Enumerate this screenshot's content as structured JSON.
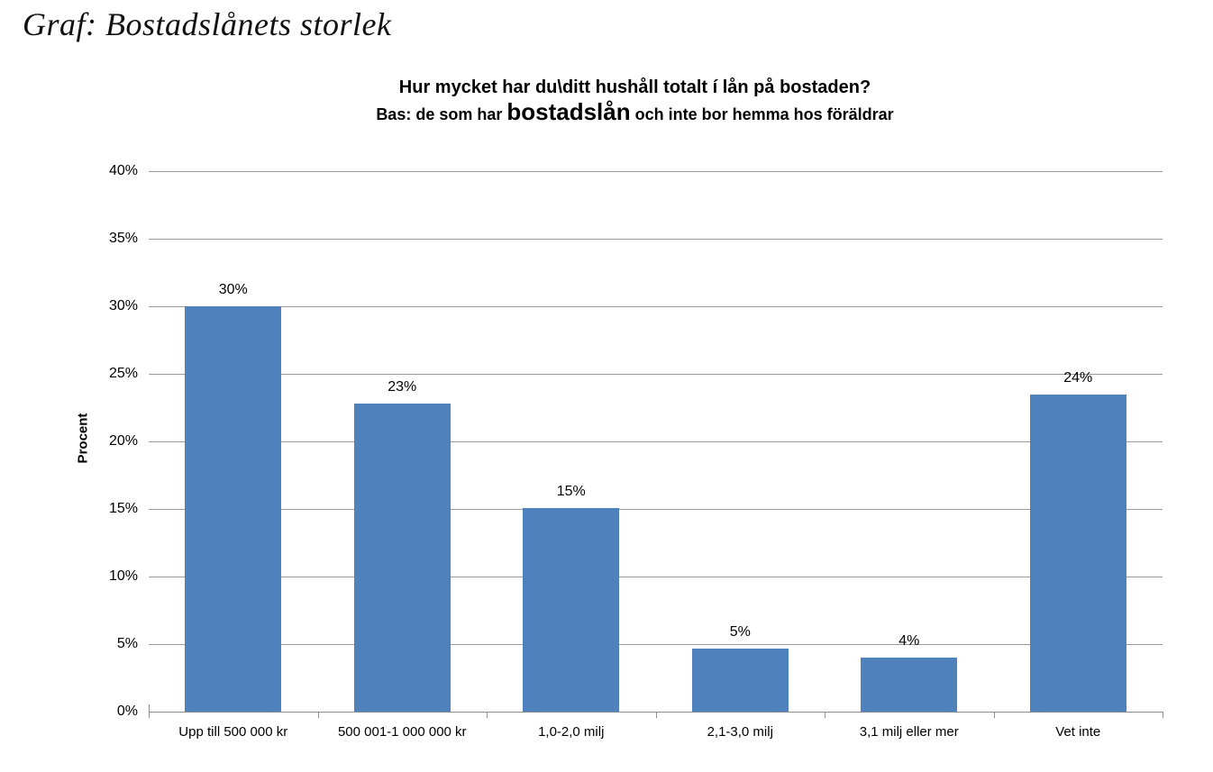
{
  "page_title": "Graf: Bostadslånets storlek",
  "chart_data": {
    "type": "bar",
    "title_line1": "Hur mycket har du\\ditt hushåll totalt í lån på bostaden?",
    "title_line2_prefix": "Bas: de som har ",
    "title_line2_emphasis": "bostadslån",
    "title_line2_suffix": " och inte bor hemma hos föräldrar",
    "ylabel": "Procent",
    "categories": [
      "Upp till 500 000 kr",
      "500 001-1 000 000 kr",
      "1,0-2,0 milj",
      "2,1-3,0 milj",
      "3,1 milj eller mer",
      "Vet inte"
    ],
    "values": [
      30,
      23,
      15,
      5,
      4,
      24
    ],
    "value_labels": [
      "30%",
      "23%",
      "15%",
      "5%",
      "4%",
      "24%"
    ],
    "bar_heights_pct": [
      30.0,
      22.8,
      15.1,
      4.7,
      4.0,
      23.5
    ],
    "y_ticks": [
      "40%",
      "35%",
      "30%",
      "25%",
      "20%",
      "15%",
      "10%",
      "5%",
      "0%"
    ],
    "ylim": [
      0,
      40
    ],
    "grid": true,
    "legend_position": "none",
    "bar_color": "#4F81BD",
    "gridline_color": "#9a9a9a",
    "text_color": "#000000"
  }
}
